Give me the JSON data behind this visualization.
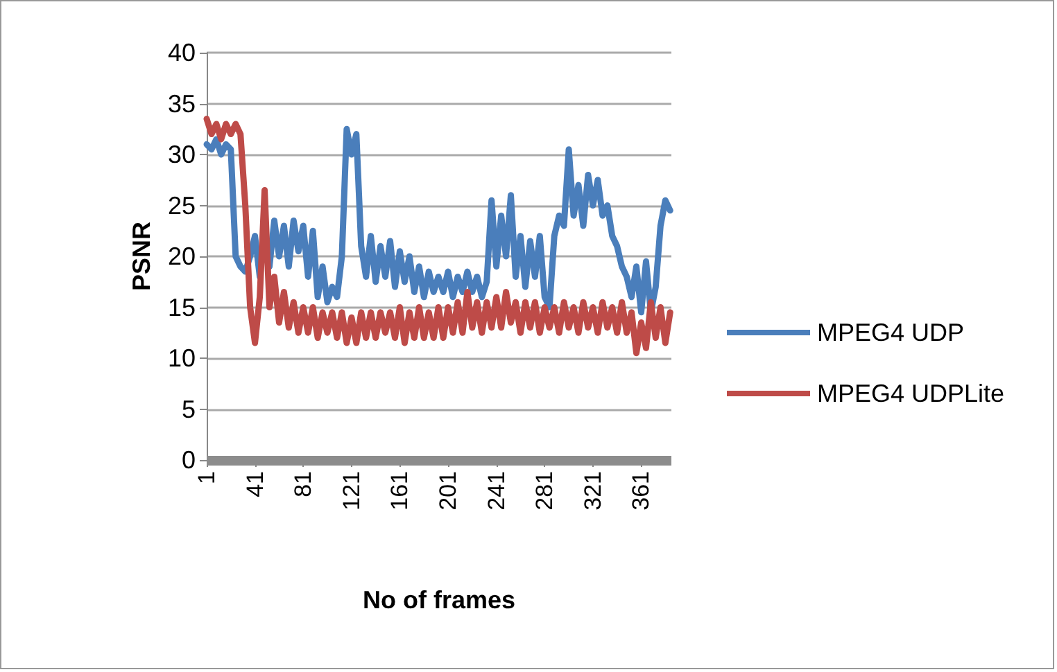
{
  "chart_data": {
    "type": "line",
    "xlabel": "No of frames",
    "ylabel": "PSNR",
    "x": [
      1,
      5,
      9,
      13,
      17,
      21,
      25,
      29,
      33,
      37,
      41,
      45,
      49,
      53,
      57,
      61,
      65,
      69,
      73,
      77,
      81,
      85,
      89,
      93,
      97,
      101,
      105,
      109,
      113,
      117,
      121,
      125,
      129,
      133,
      137,
      141,
      145,
      149,
      153,
      157,
      161,
      165,
      169,
      173,
      177,
      181,
      185,
      189,
      193,
      197,
      201,
      205,
      209,
      213,
      217,
      221,
      225,
      229,
      233,
      237,
      241,
      245,
      249,
      253,
      257,
      261,
      265,
      269,
      273,
      277,
      281,
      285,
      289,
      293,
      297,
      301,
      305,
      309,
      313,
      317,
      321,
      325,
      329,
      333,
      337,
      341,
      345,
      349,
      353,
      357,
      361,
      365,
      369,
      373,
      377,
      381,
      385
    ],
    "series": [
      {
        "name": "MPEG4 UDP",
        "color": "#4a7ebb",
        "values": [
          31,
          30.5,
          31.5,
          30,
          31,
          30.5,
          20,
          19,
          18.5,
          20,
          22,
          18,
          23,
          19,
          23.5,
          20,
          23,
          19,
          23.5,
          20.5,
          23,
          18,
          22.5,
          16,
          19,
          15.5,
          17,
          16,
          20,
          32.5,
          30,
          32,
          21,
          18,
          22,
          17.5,
          21,
          18,
          21.5,
          17,
          20.5,
          17.5,
          20,
          16.5,
          19,
          16,
          18.5,
          16.5,
          18,
          16.5,
          18.5,
          16,
          18,
          16.5,
          18.5,
          16.5,
          18,
          16,
          17.5,
          25.5,
          19,
          24,
          20,
          26,
          18,
          22,
          17,
          21.5,
          18,
          22,
          16,
          15,
          22,
          24,
          23,
          30.5,
          24,
          27,
          23,
          28,
          25,
          27.5,
          24,
          25,
          22,
          21,
          19,
          18,
          16,
          19,
          14.5,
          19.5,
          14.5,
          17,
          23,
          25.5,
          24.5
        ]
      },
      {
        "name": "MPEG4 UDPLite",
        "color": "#be4b48",
        "values": [
          33.5,
          32,
          33,
          31.5,
          33,
          32,
          33,
          32,
          25,
          15,
          11.5,
          16,
          26.5,
          15,
          18,
          13.5,
          16.5,
          13,
          15.5,
          12.5,
          15,
          12.5,
          15,
          12,
          14.5,
          12.5,
          14.5,
          12,
          14.5,
          11.5,
          14,
          11.5,
          14.5,
          12,
          14.5,
          12,
          14.5,
          12.5,
          14.5,
          12,
          15,
          11.5,
          14.5,
          12,
          15,
          12,
          14.5,
          12,
          15,
          12,
          15,
          12.5,
          15.5,
          12.5,
          16.5,
          13,
          15.5,
          12.5,
          15.5,
          13,
          16,
          13,
          16.5,
          13.5,
          15.5,
          12.5,
          15.5,
          13,
          15.5,
          12.5,
          15,
          13,
          15,
          12.5,
          15.5,
          13,
          15,
          12.5,
          15.5,
          13,
          15,
          12.5,
          15.5,
          13,
          15,
          12.5,
          15.5,
          12.5,
          14.5,
          10.5,
          13.5,
          11,
          15.5,
          12,
          15,
          11.5,
          14.5
        ]
      }
    ],
    "xlim": [
      1,
      386
    ],
    "xticks": [
      1,
      41,
      81,
      121,
      161,
      201,
      241,
      281,
      321,
      361
    ],
    "ylim": [
      0,
      40
    ],
    "yticks": [
      0,
      5,
      10,
      15,
      20,
      25,
      30,
      35,
      40
    ],
    "grid": "y",
    "legend": "right",
    "marker": "none",
    "line_style": "solid"
  }
}
